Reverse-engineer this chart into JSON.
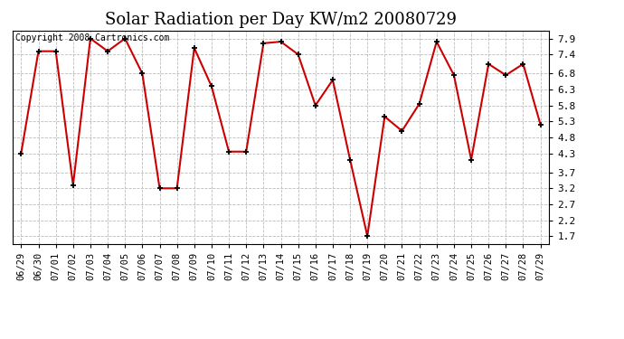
{
  "title": "Solar Radiation per Day KW/m2 20080729",
  "copyright_text": "Copyright 2008 Cartronics.com",
  "dates": [
    "06/29",
    "06/30",
    "07/01",
    "07/02",
    "07/03",
    "07/04",
    "07/05",
    "07/06",
    "07/07",
    "07/08",
    "07/09",
    "07/10",
    "07/11",
    "07/12",
    "07/13",
    "07/14",
    "07/15",
    "07/16",
    "07/17",
    "07/18",
    "07/19",
    "07/20",
    "07/21",
    "07/22",
    "07/23",
    "07/24",
    "07/25",
    "07/26",
    "07/27",
    "07/28",
    "07/29"
  ],
  "values": [
    4.3,
    7.5,
    7.5,
    3.3,
    7.9,
    7.5,
    7.9,
    6.8,
    3.2,
    3.2,
    7.6,
    6.4,
    4.35,
    4.35,
    7.75,
    7.8,
    7.4,
    5.8,
    6.6,
    4.1,
    1.7,
    5.45,
    5.0,
    5.85,
    7.8,
    6.75,
    4.1,
    7.1,
    6.75,
    7.1,
    5.2
  ],
  "line_color": "#cc0000",
  "marker_color": "#000000",
  "bg_color": "#ffffff",
  "grid_color": "#bbbbbb",
  "ylim_min": 1.45,
  "ylim_max": 8.15,
  "yticks": [
    1.7,
    2.2,
    2.7,
    3.2,
    3.7,
    4.3,
    4.8,
    5.3,
    5.8,
    6.3,
    6.8,
    7.4,
    7.9
  ],
  "title_fontsize": 13,
  "copyright_fontsize": 7,
  "tick_fontsize": 7.5,
  "ytick_fontsize": 8
}
